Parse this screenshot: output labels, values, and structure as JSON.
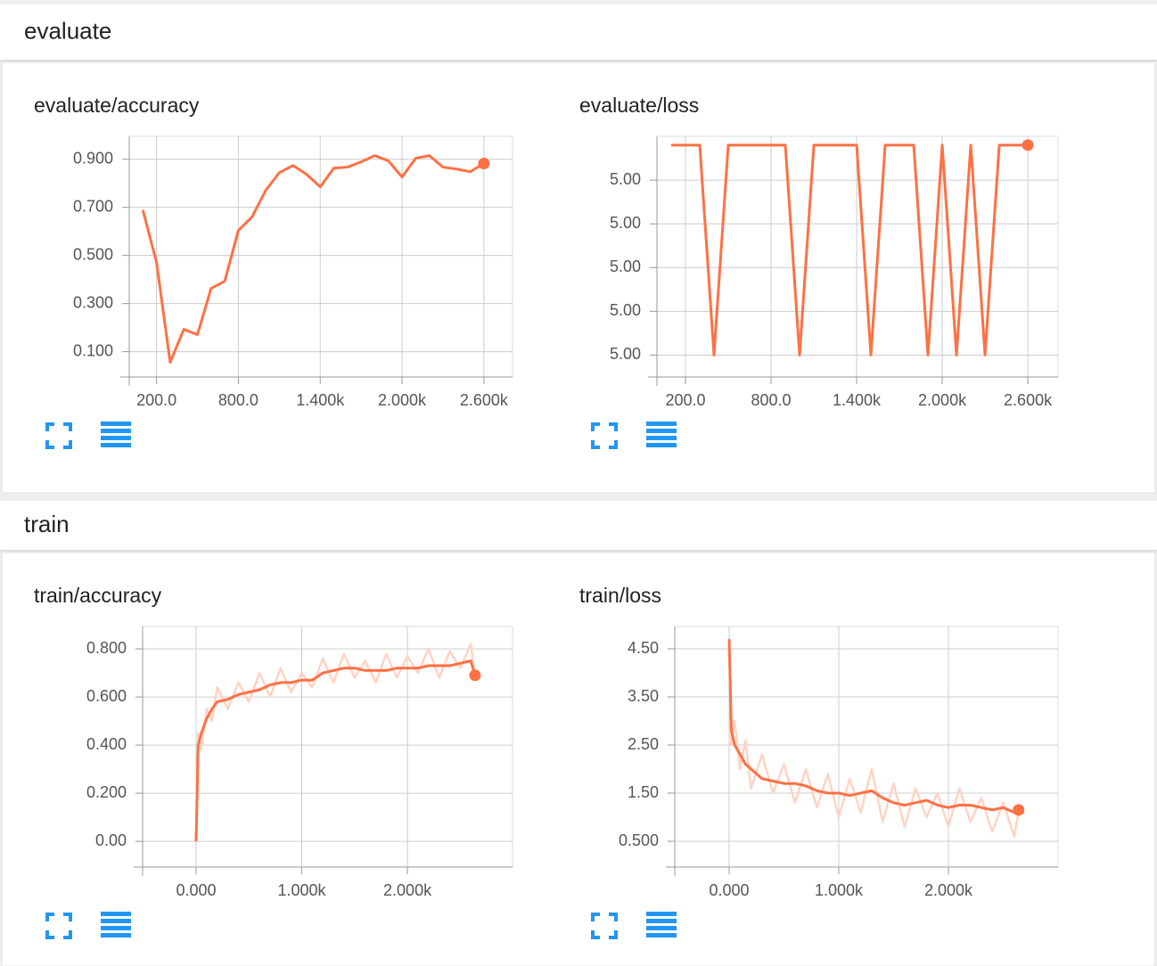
{
  "sections": [
    {
      "title": "evaluate"
    },
    {
      "title": "train"
    }
  ],
  "chart_data": [
    {
      "type": "line",
      "title": "evaluate/accuracy",
      "x": [
        100,
        200,
        300,
        400,
        500,
        600,
        700,
        800,
        900,
        1000,
        1100,
        1200,
        1300,
        1400,
        1500,
        1600,
        1700,
        1800,
        1900,
        2000,
        2100,
        2200,
        2300,
        2400,
        2500,
        2600
      ],
      "series": [
        {
          "color": "#ff7043",
          "values": [
            0.689,
            0.471,
            0.056,
            0.193,
            0.171,
            0.363,
            0.393,
            0.604,
            0.66,
            0.77,
            0.844,
            0.874,
            0.837,
            0.785,
            0.863,
            0.867,
            0.889,
            0.915,
            0.893,
            0.826,
            0.904,
            0.915,
            0.867,
            0.859,
            0.848,
            0.882
          ]
        }
      ],
      "xlim": [
        0,
        2810
      ],
      "ylim": [
        -0.005,
        0.995
      ],
      "xticks": [
        {
          "value": 200,
          "label": "200.0"
        },
        {
          "value": 800,
          "label": "800.0"
        },
        {
          "value": 1400,
          "label": "1.400k"
        },
        {
          "value": 2000,
          "label": "2.000k"
        },
        {
          "value": 2600,
          "label": "2.600k"
        }
      ],
      "yticks": [
        {
          "value": 0.1,
          "label": "0.100"
        },
        {
          "value": 0.3,
          "label": "0.300"
        },
        {
          "value": 0.5,
          "label": "0.500"
        },
        {
          "value": 0.7,
          "label": "0.700"
        },
        {
          "value": 0.9,
          "label": "0.900"
        }
      ],
      "grid": true
    },
    {
      "type": "line",
      "title": "evaluate/loss",
      "x": [
        100,
        200,
        300,
        400,
        500,
        600,
        700,
        800,
        900,
        1000,
        1100,
        1200,
        1300,
        1400,
        1500,
        1600,
        1700,
        1800,
        1900,
        2000,
        2100,
        2200,
        2300,
        2400,
        2500,
        2600
      ],
      "series": [
        {
          "color": "#ff7043",
          "values": [
            5.0000028,
            5.0000028,
            5.0000028,
            4.999998,
            5.0000028,
            5.0000028,
            5.0000028,
            5.0000028,
            5.0000028,
            4.999998,
            5.0000028,
            5.0000028,
            5.0000028,
            5.0000028,
            4.999998,
            5.0000028,
            5.0000028,
            5.0000028,
            4.999998,
            5.0000028,
            4.999998,
            5.0000028,
            4.999998,
            5.0000028,
            5.0000028,
            5.0000028
          ]
        }
      ],
      "xlim": [
        0,
        2812
      ],
      "ylim": [
        4.9999975,
        5.000003
      ],
      "xticks": [
        {
          "value": 200,
          "label": "200.0"
        },
        {
          "value": 800,
          "label": "800.0"
        },
        {
          "value": 1400,
          "label": "1.400k"
        },
        {
          "value": 2000,
          "label": "2.000k"
        },
        {
          "value": 2600,
          "label": "2.600k"
        }
      ],
      "yticks": [
        {
          "value": 4.999998,
          "label": "5.00"
        },
        {
          "value": 4.999999,
          "label": "5.00"
        },
        {
          "value": 5.0,
          "label": "5.00"
        },
        {
          "value": 5.000001,
          "label": "5.00"
        },
        {
          "value": 5.000002,
          "label": "5.00"
        }
      ],
      "grid": true
    },
    {
      "type": "line",
      "title": "train/accuracy",
      "x": [
        0,
        20,
        50,
        100,
        150,
        200,
        300,
        400,
        500,
        600,
        700,
        800,
        900,
        1000,
        1100,
        1200,
        1300,
        1400,
        1500,
        1600,
        1700,
        1800,
        1900,
        2000,
        2100,
        2200,
        2300,
        2400,
        2500,
        2600,
        2640
      ],
      "series": [
        {
          "color": "#ffd3c4",
          "values": [
            0,
            0.45,
            0.38,
            0.55,
            0.5,
            0.64,
            0.55,
            0.66,
            0.58,
            0.7,
            0.6,
            0.72,
            0.62,
            0.7,
            0.64,
            0.76,
            0.66,
            0.78,
            0.68,
            0.75,
            0.66,
            0.78,
            0.68,
            0.77,
            0.7,
            0.8,
            0.68,
            0.79,
            0.72,
            0.82,
            0.69
          ]
        },
        {
          "color": "#ff7043",
          "values": [
            0,
            0.4,
            0.45,
            0.51,
            0.55,
            0.58,
            0.59,
            0.61,
            0.62,
            0.63,
            0.65,
            0.66,
            0.66,
            0.67,
            0.67,
            0.7,
            0.71,
            0.72,
            0.72,
            0.71,
            0.71,
            0.71,
            0.72,
            0.72,
            0.72,
            0.73,
            0.73,
            0.73,
            0.74,
            0.75,
            0.69
          ]
        }
      ],
      "xlim": [
        -506,
        2995
      ],
      "ylim": [
        -0.107,
        0.893
      ],
      "xticks": [
        {
          "value": 0,
          "label": "0.000"
        },
        {
          "value": 1000,
          "label": "1.000k"
        },
        {
          "value": 2000,
          "label": "2.000k"
        }
      ],
      "yticks": [
        {
          "value": 0,
          "label": "0.00"
        },
        {
          "value": 0.2,
          "label": "0.200"
        },
        {
          "value": 0.4,
          "label": "0.400"
        },
        {
          "value": 0.6,
          "label": "0.600"
        },
        {
          "value": 0.8,
          "label": "0.800"
        }
      ],
      "grid": true
    },
    {
      "type": "line",
      "title": "train/loss",
      "x": [
        0,
        20,
        50,
        100,
        150,
        200,
        300,
        400,
        500,
        600,
        700,
        800,
        900,
        1000,
        1100,
        1200,
        1300,
        1400,
        1500,
        1600,
        1700,
        1800,
        1900,
        2000,
        2100,
        2200,
        2300,
        2400,
        2500,
        2600,
        2640
      ],
      "series": [
        {
          "color": "#ffd3c4",
          "values": [
            4.7,
            2.5,
            3.0,
            2.0,
            2.6,
            1.6,
            2.3,
            1.5,
            2.1,
            1.3,
            2.0,
            1.2,
            1.9,
            1.0,
            1.8,
            1.1,
            2.0,
            0.9,
            1.7,
            0.8,
            1.6,
            1.0,
            1.5,
            0.8,
            1.6,
            0.9,
            1.4,
            0.7,
            1.3,
            0.6,
            1.1
          ]
        },
        {
          "color": "#ff7043",
          "values": [
            4.7,
            2.8,
            2.5,
            2.3,
            2.1,
            2.0,
            1.8,
            1.75,
            1.7,
            1.7,
            1.65,
            1.55,
            1.5,
            1.5,
            1.45,
            1.5,
            1.55,
            1.4,
            1.3,
            1.25,
            1.3,
            1.35,
            1.25,
            1.2,
            1.25,
            1.25,
            1.2,
            1.15,
            1.2,
            1.1,
            1.15
          ]
        }
      ],
      "xlim": [
        -496,
        3000
      ],
      "ylim": [
        -0.037,
        4.963
      ],
      "xticks": [
        {
          "value": 0,
          "label": "0.000"
        },
        {
          "value": 1000,
          "label": "1.000k"
        },
        {
          "value": 2000,
          "label": "2.000k"
        }
      ],
      "yticks": [
        {
          "value": 0.5,
          "label": "0.500"
        },
        {
          "value": 1.5,
          "label": "1.50"
        },
        {
          "value": 2.5,
          "label": "2.50"
        },
        {
          "value": 3.5,
          "label": "3.50"
        },
        {
          "value": 4.5,
          "label": "4.50"
        }
      ],
      "grid": true
    }
  ]
}
